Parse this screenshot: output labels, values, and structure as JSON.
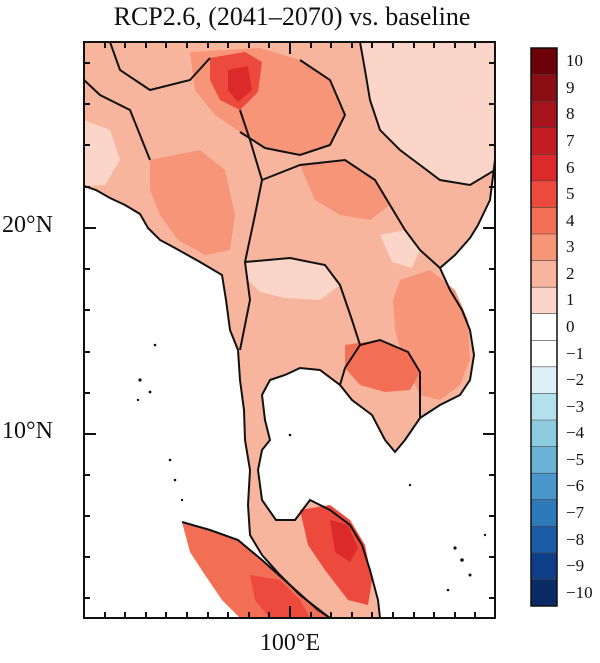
{
  "title": "RCP2.6, (2041–2070) vs. baseline",
  "axes": {
    "lat_labels": [
      "20°N",
      "10°N"
    ],
    "lon_labels": [
      "100°E"
    ]
  },
  "colorbar": {
    "labels": [
      "10",
      "9",
      "8",
      "7",
      "6",
      "5",
      "4",
      "3",
      "2",
      "1",
      "0",
      "−1",
      "−2",
      "−3",
      "−4",
      "−5",
      "−6",
      "−7",
      "−8",
      "−9",
      "−10"
    ],
    "colors": [
      "#6b0008",
      "#8b0e14",
      "#a5141c",
      "#c51d24",
      "#dc2a2a",
      "#ec4a3c",
      "#f26e55",
      "#f69577",
      "#f8b59d",
      "#fbd6c8",
      "#ffffff",
      "#ffffff",
      "#dcf0f6",
      "#b2e0ec",
      "#8ccbe0",
      "#6ab3d6",
      "#4a96cb",
      "#2f78b9",
      "#1c5ca6",
      "#103f8a",
      "#0b2a63"
    ]
  },
  "map_colors": {
    "level1": "#fbd6c8",
    "level2": "#f8b59d",
    "level3": "#f69577",
    "level4": "#f26e55",
    "level5": "#ec4a3c",
    "level6": "#dc2a2a",
    "level7": "#c51d24"
  }
}
